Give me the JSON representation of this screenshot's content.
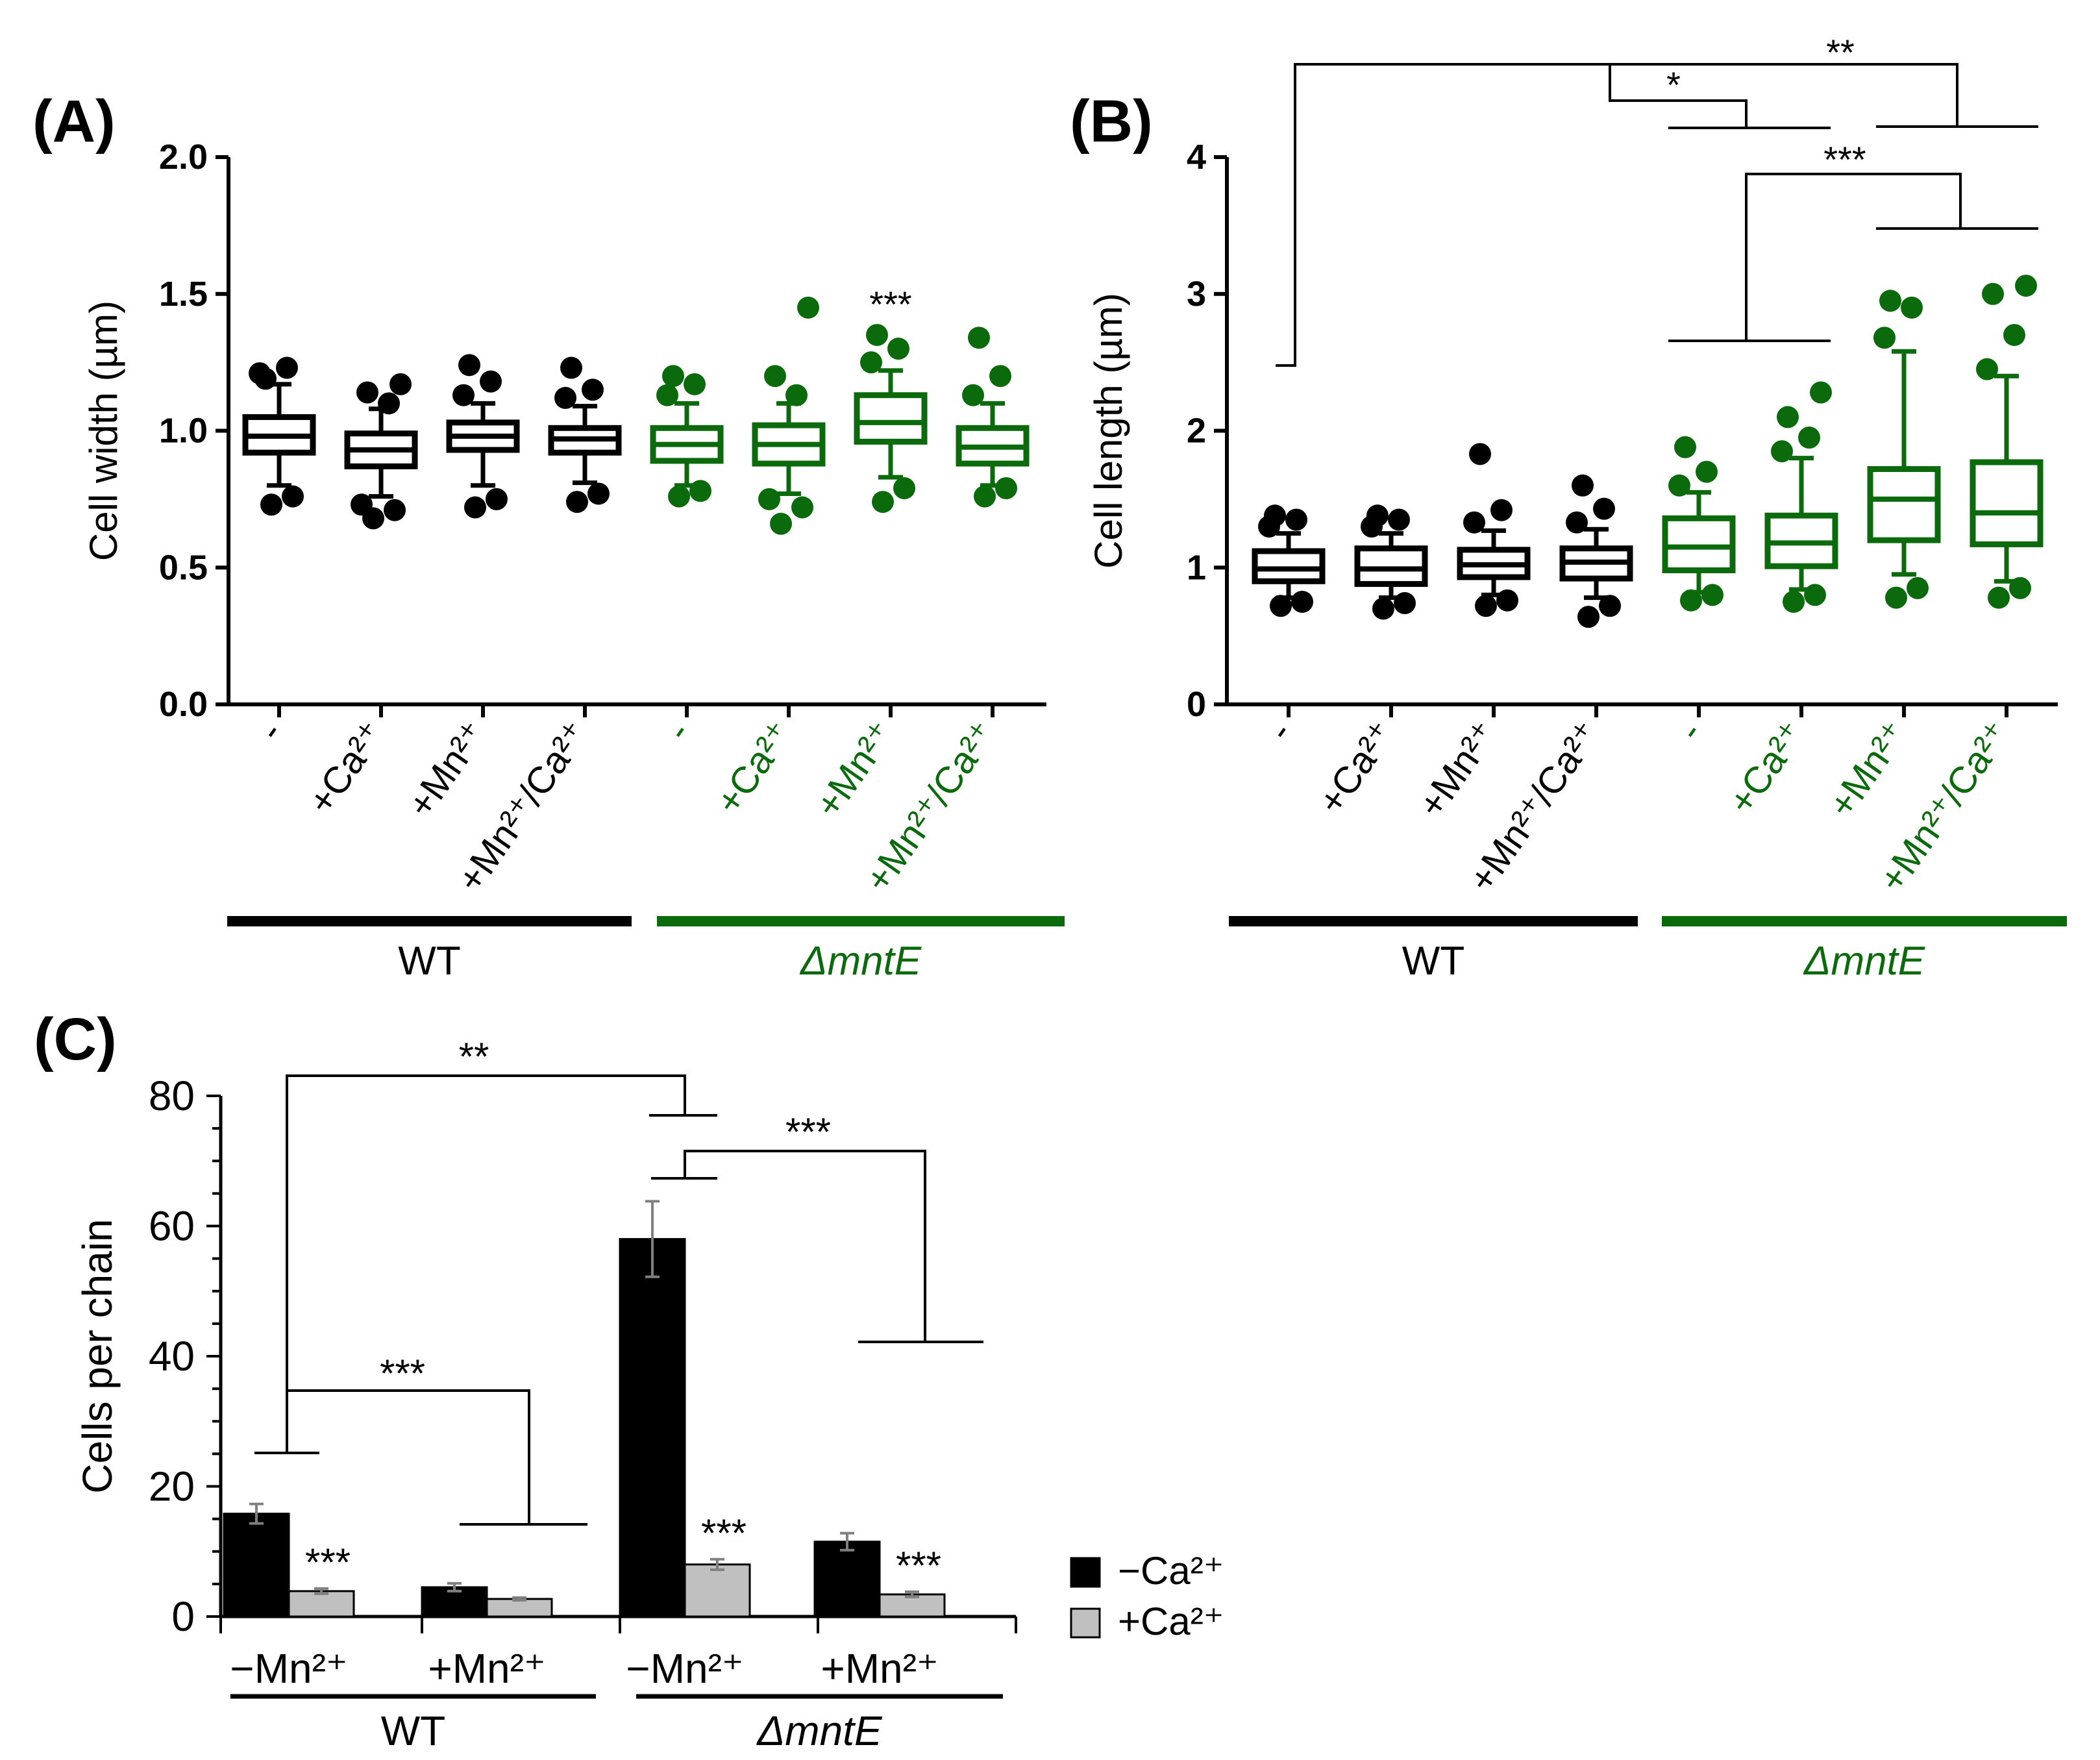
{
  "colors": {
    "wt": "#000000",
    "mutant": "#0b6a0b",
    "bar_noca": "#000000",
    "bar_ca": "#c0c0c0",
    "errorbar": "#808080"
  },
  "chart_data": [
    {
      "panel": "(A)",
      "type": "boxplot",
      "ylabel": "Cell width (µm)",
      "ylim": [
        0,
        2.0
      ],
      "yticks": [
        "0.0",
        "0.5",
        "1.0",
        "1.5",
        "2.0"
      ],
      "categories": [
        "-",
        "+Ca²⁺",
        "+Mn²⁺",
        "+Mn²⁺/Ca²⁺",
        "-",
        "+Ca²⁺",
        "+Mn²⁺",
        "+Mn²⁺/Ca²⁺"
      ],
      "groups": [
        {
          "name": "WT",
          "italic": false,
          "start": 0,
          "end": 3
        },
        {
          "name": "ΔmntE",
          "italic": true,
          "start": 4,
          "end": 7
        }
      ],
      "boxes": [
        {
          "group": "WT",
          "q1": 0.92,
          "median": 0.98,
          "q3": 1.05,
          "whisker_low": 0.8,
          "whisker_high": 1.17,
          "outliers": [
            0.73,
            0.76,
            1.21,
            1.23,
            1.19
          ]
        },
        {
          "group": "WT",
          "q1": 0.87,
          "median": 0.93,
          "q3": 0.99,
          "whisker_low": 0.76,
          "whisker_high": 1.08,
          "outliers": [
            0.68,
            0.71,
            0.73,
            1.1,
            1.14,
            1.17
          ]
        },
        {
          "group": "WT",
          "q1": 0.93,
          "median": 0.98,
          "q3": 1.03,
          "whisker_low": 0.8,
          "whisker_high": 1.1,
          "outliers": [
            0.72,
            0.75,
            1.13,
            1.18,
            1.24
          ]
        },
        {
          "group": "WT",
          "q1": 0.92,
          "median": 0.97,
          "q3": 1.01,
          "whisker_low": 0.81,
          "whisker_high": 1.09,
          "outliers": [
            0.74,
            0.77,
            1.12,
            1.15,
            1.23
          ]
        },
        {
          "group": "ΔmntE",
          "q1": 0.89,
          "median": 0.95,
          "q3": 1.01,
          "whisker_low": 0.8,
          "whisker_high": 1.1,
          "outliers": [
            0.76,
            0.78,
            1.13,
            1.17,
            1.2
          ]
        },
        {
          "group": "ΔmntE",
          "q1": 0.88,
          "median": 0.95,
          "q3": 1.02,
          "whisker_low": 0.77,
          "whisker_high": 1.1,
          "outliers": [
            0.66,
            0.72,
            0.75,
            1.13,
            1.2,
            1.45
          ]
        },
        {
          "group": "ΔmntE",
          "q1": 0.96,
          "median": 1.03,
          "q3": 1.13,
          "whisker_low": 0.83,
          "whisker_high": 1.22,
          "outliers": [
            0.74,
            0.79,
            1.25,
            1.3,
            1.35
          ]
        },
        {
          "group": "ΔmntE",
          "q1": 0.88,
          "median": 0.94,
          "q3": 1.01,
          "whisker_low": 0.8,
          "whisker_high": 1.1,
          "outliers": [
            0.76,
            0.79,
            1.13,
            1.2,
            1.34
          ]
        }
      ],
      "annotations": [
        {
          "category_index": 6,
          "text": "***"
        }
      ]
    },
    {
      "panel": "(B)",
      "type": "boxplot",
      "ylabel": "Cell length (µm)",
      "ylim": [
        0,
        4
      ],
      "yticks": [
        "0",
        "1",
        "2",
        "3",
        "4"
      ],
      "categories": [
        "-",
        "+Ca²⁺",
        "+Mn²⁺",
        "+Mn²⁺/Ca²⁺",
        "-",
        "+Ca²⁺",
        "+Mn²⁺",
        "+Mn²⁺/Ca²⁺"
      ],
      "groups": [
        {
          "name": "WT",
          "italic": false,
          "start": 0,
          "end": 3
        },
        {
          "name": "ΔmntE",
          "italic": true,
          "start": 4,
          "end": 7
        }
      ],
      "boxes": [
        {
          "group": "WT",
          "q1": 0.9,
          "median": 0.99,
          "q3": 1.12,
          "whisker_low": 0.78,
          "whisker_high": 1.25,
          "outliers": [
            0.72,
            0.75,
            1.3,
            1.35,
            1.38
          ]
        },
        {
          "group": "WT",
          "q1": 0.88,
          "median": 0.99,
          "q3": 1.14,
          "whisker_low": 0.78,
          "whisker_high": 1.25,
          "outliers": [
            0.7,
            0.74,
            1.3,
            1.35,
            1.38
          ]
        },
        {
          "group": "WT",
          "q1": 0.93,
          "median": 1.02,
          "q3": 1.13,
          "whisker_low": 0.8,
          "whisker_high": 1.27,
          "outliers": [
            0.72,
            0.76,
            1.33,
            1.42,
            1.83
          ]
        },
        {
          "group": "WT",
          "q1": 0.92,
          "median": 1.04,
          "q3": 1.14,
          "whisker_low": 0.78,
          "whisker_high": 1.28,
          "outliers": [
            0.64,
            0.72,
            1.33,
            1.43,
            1.6
          ]
        },
        {
          "group": "ΔmntE",
          "q1": 0.98,
          "median": 1.15,
          "q3": 1.36,
          "whisker_low": 0.82,
          "whisker_high": 1.55,
          "outliers": [
            0.76,
            0.8,
            1.6,
            1.7,
            1.88
          ]
        },
        {
          "group": "ΔmntE",
          "q1": 1.01,
          "median": 1.18,
          "q3": 1.38,
          "whisker_low": 0.84,
          "whisker_high": 1.8,
          "outliers": [
            0.75,
            0.8,
            1.85,
            1.95,
            2.1,
            2.28
          ]
        },
        {
          "group": "ΔmntE",
          "q1": 1.2,
          "median": 1.5,
          "q3": 1.72,
          "whisker_low": 0.95,
          "whisker_high": 2.58,
          "outliers": [
            0.78,
            0.85,
            2.68,
            2.9,
            2.95
          ]
        },
        {
          "group": "ΔmntE",
          "q1": 1.17,
          "median": 1.4,
          "q3": 1.77,
          "whisker_low": 0.9,
          "whisker_high": 2.4,
          "outliers": [
            0.78,
            0.85,
            2.45,
            2.7,
            3.0,
            3.06
          ]
        }
      ],
      "significance": [
        {
          "text": "*",
          "bracket": "WT - vs ΔmntE - / +Ca²⁺"
        },
        {
          "text": "**",
          "bracket": "WT - vs ΔmntE +Mn²⁺ / +Mn²⁺/Ca²⁺"
        },
        {
          "text": "***",
          "bracket": "ΔmntE - / +Ca²⁺ vs +Mn²⁺ / +Mn²⁺/Ca²⁺"
        }
      ]
    },
    {
      "panel": "(C)",
      "type": "bar",
      "ylabel": "Cells per chain",
      "ylim": [
        0,
        80
      ],
      "yticks": [
        "0",
        "20",
        "40",
        "60",
        "80"
      ],
      "categories": [
        "−Mn²⁺",
        "+Mn²⁺",
        "−Mn²⁺",
        "+Mn²⁺"
      ],
      "groups": [
        {
          "name": "WT",
          "italic": false,
          "start": 0,
          "end": 1
        },
        {
          "name": "ΔmntE",
          "italic": true,
          "start": 2,
          "end": 3
        }
      ],
      "series": [
        {
          "name": "−Ca²⁺",
          "values": [
            15.8,
            4.5,
            58.0,
            11.5
          ],
          "errors": [
            1.5,
            0.6,
            5.8,
            1.3
          ]
        },
        {
          "name": "+Ca²⁺",
          "values": [
            3.9,
            2.7,
            8.0,
            3.4
          ],
          "errors": [
            0.4,
            0.2,
            0.8,
            0.4
          ]
        }
      ],
      "annotations": [
        {
          "category_index": 0,
          "series": "+Ca²⁺",
          "text": "***"
        },
        {
          "category_index": 2,
          "series": "+Ca²⁺",
          "text": "***"
        },
        {
          "category_index": 3,
          "series": "+Ca²⁺",
          "text": "***"
        }
      ],
      "significance": [
        {
          "text": "**",
          "bracket": "WT −Mn²⁺ vs ΔmntE −Mn²⁺ (−Ca²⁺)"
        },
        {
          "text": "***",
          "bracket": "WT −Mn²⁺ vs WT +Mn²⁺"
        },
        {
          "text": "***",
          "bracket": "ΔmntE −Mn²⁺ vs ΔmntE +Mn²⁺"
        }
      ]
    }
  ]
}
